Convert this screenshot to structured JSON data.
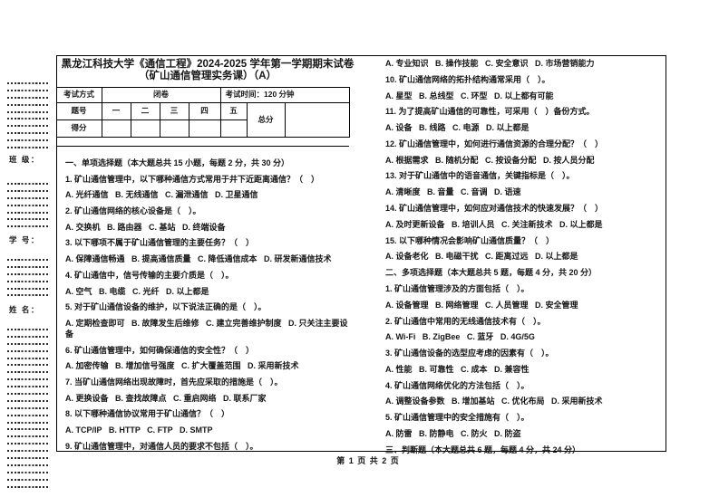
{
  "page": {
    "background": "#ffffff",
    "ink_color": "#161616",
    "footer": "第 1 页 共 2 页"
  },
  "margin_labels": {
    "class_label": "班 级：",
    "student_id_label": "学 号：",
    "name_label": "姓 名："
  },
  "header": {
    "title": "黑龙江科技大学《通信工程》2024-2025 学年第一学期期末试卷（矿山通信管理实务课）（A）"
  },
  "exam_table": {
    "method_label": "考试方式",
    "method_value": "闭卷",
    "time_label": "考试时间：120 分钟",
    "row_header": "题号",
    "columns": [
      "一",
      "二",
      "三",
      "四",
      "五"
    ],
    "total_label": "总分",
    "score_header": "得分"
  },
  "questions": {
    "left_column": [
      "一、单项选择题（本大题总共 15 小题，每题 2 分，共 30 分）",
      "1. 矿山通信管理中，以下哪种通信方式常用于井下近距离通信？（　）",
      "A. 光纤通信   B. 无线通信   C. 漏泄通信   D. 卫星通信",
      "2. 矿山通信网络的核心设备是（　）。",
      "A. 交换机   B. 路由器   C. 基站   D. 终端设备",
      "3. 以下哪项不属于矿山通信管理的主要任务？（　）",
      "A. 保障通信畅通   B. 提高通信质量   C. 降低通信成本   D. 研发新通信技术",
      "4. 矿山通信中，信号传输的主要介质是（　）。",
      "A. 空气   B. 电缆   C. 光纤   D. 以上都是",
      "5. 对于矿山通信设备的维护，以下说法正确的是（　）。",
      "A. 定期检查即可   B. 故障发生后维修   C. 建立完善维护制度   D. 只关注主要设备",
      "6. 矿山通信管理中，如何确保通信的安全性？（　）",
      "A. 加密传输   B. 增加信号强度   C. 扩大覆盖范围   D. 采用新技术",
      "7. 当矿山通信网络出现故障时，首先应采取的措施是（　）。",
      "A. 更换设备   B. 查找故障点   C. 重启网络   D. 联系厂家",
      "8. 以下哪种通信协议常用于矿山通信？（　）",
      "A. TCP/IP   B. HTTP   C. FTP   D. SMTP",
      "9. 矿山通信管理中，对通信人员的要求不包括（　）。"
    ],
    "right_column": [
      "A. 专业知识   B. 操作技能   C. 安全意识   D. 市场营销能力",
      "10. 矿山通信网络的拓扑结构通常采用（　）。",
      "A. 星型   B. 总线型   C. 环型   D. 以上都有可能",
      "11. 为了提高矿山通信的可靠性，可采用（　）备份方式。",
      "A. 设备   B. 线路   C. 电源   D. 以上都是",
      "12. 矿山通信管理中，如何进行通信资源的合理分配？（　）",
      "A. 根据需求   B. 随机分配   C. 按设备分配   D. 按人员分配",
      "13. 对于矿山通信中的语音通信，关键指标是（　）。",
      "A. 清晰度   B. 音量   C. 音调   D. 语速",
      "14. 矿山通信管理中，如何应对通信技术的快速发展？（　）",
      "A. 及时更新设备   B. 培训人员   C. 关注新技术   D. 以上都是",
      "15. 以下哪种情况会影响矿山通信质量？（　）",
      "A. 设备老化   B. 电磁干扰   C. 距离过远   D. 以上都是",
      "二、多项选择题（本大题总共 5 题，每题 4 分，共 20 分）",
      "1. 矿山通信管理涉及的方面包括（　）。",
      "A. 设备管理   B. 网络管理   C. 人员管理   D. 安全管理",
      "2. 矿山通信中常用的无线通信技术有（　）。",
      "A. Wi-Fi   B. ZigBee   C. 蓝牙   D. 4G/5G",
      "3. 矿山通信设备的选型应考虑的因素有（　）。",
      "A. 性能   B. 可靠性   C. 成本   D. 兼容性",
      "4. 矿山通信网络优化的方法包括（　）。",
      "A. 调整设备参数   B. 增加基站   C. 优化布局   D. 采用新技术",
      "5. 矿山通信管理中的安全措施有（　）。",
      "A. 防雷   B. 防静电   C. 防火   D. 防盗",
      "三、判断题（本大题总共 6 题，每题 4 分，共 24 分）"
    ]
  }
}
